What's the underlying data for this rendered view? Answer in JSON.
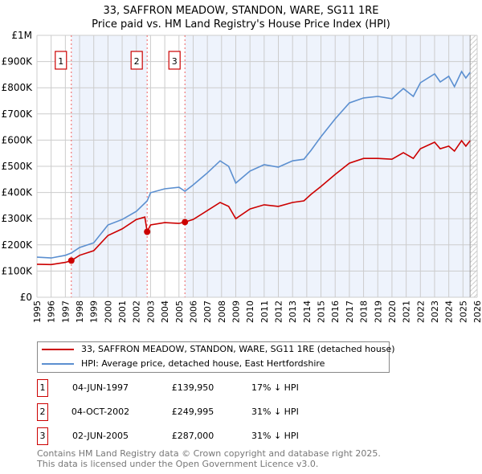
{
  "chart_data": {
    "type": "line",
    "title": "33, SAFFRON MEADOW, STANDON, WARE, SG11 1RE",
    "subtitle": "Price paid vs. HM Land Registry's House Price Index (HPI)",
    "xlabel": "",
    "ylabel": "",
    "xlim": [
      1995,
      2026
    ],
    "ylim": [
      0,
      1000000
    ],
    "y_ticks": [
      {
        "v": 0,
        "label": "£0"
      },
      {
        "v": 100000,
        "label": "£100K"
      },
      {
        "v": 200000,
        "label": "£200K"
      },
      {
        "v": 300000,
        "label": "£300K"
      },
      {
        "v": 400000,
        "label": "£400K"
      },
      {
        "v": 500000,
        "label": "£500K"
      },
      {
        "v": 600000,
        "label": "£600K"
      },
      {
        "v": 700000,
        "label": "£700K"
      },
      {
        "v": 800000,
        "label": "£800K"
      },
      {
        "v": 900000,
        "label": "£900K"
      },
      {
        "v": 1000000,
        "label": "£1M"
      }
    ],
    "x_ticks": [
      "1995",
      "1996",
      "1997",
      "1998",
      "1999",
      "2000",
      "2001",
      "2002",
      "2003",
      "2004",
      "2005",
      "2006",
      "2007",
      "2008",
      "2009",
      "2010",
      "2011",
      "2012",
      "2013",
      "2014",
      "2015",
      "2016",
      "2017",
      "2018",
      "2019",
      "2020",
      "2021",
      "2022",
      "2023",
      "2024",
      "2025",
      "2026"
    ],
    "grid": true,
    "data_end": 2025.5,
    "colors": {
      "property": "#cc0000",
      "hpi": "#5b8fd0",
      "shade": "#eef3fc"
    },
    "series": [
      {
        "name": "33, SAFFRON MEADOW, STANDON, WARE, SG11 1RE (detached house)",
        "x": [
          1995,
          1996,
          1997,
          1997.42,
          1998,
          1999,
          2000,
          2001,
          2002,
          2002.6,
          2002.76,
          2003,
          2004,
          2005,
          2005.42,
          2006,
          2007,
          2007.9,
          2008.5,
          2009,
          2010,
          2011,
          2012,
          2013,
          2013.8,
          2014.3,
          2015,
          2016,
          2017,
          2018,
          2019,
          2020,
          2020.8,
          2021.5,
          2022,
          2023,
          2023.4,
          2024,
          2024.4,
          2024.9,
          2025.2,
          2025.5
        ],
        "y": [
          126000,
          125000,
          133000,
          139950,
          160000,
          178000,
          236000,
          261000,
          297000,
          306000,
          249995,
          276000,
          285000,
          282000,
          287000,
          297000,
          331000,
          362000,
          347000,
          300000,
          337000,
          353000,
          347000,
          362000,
          368000,
          393000,
          423000,
          469000,
          512000,
          530000,
          530000,
          527000,
          552000,
          530000,
          567000,
          592000,
          567000,
          577000,
          558000,
          598000,
          577000,
          598000
        ]
      },
      {
        "name": "HPI: Average price, detached house, East Hertfordshire",
        "x": [
          1995,
          1996,
          1997,
          1997.42,
          1998,
          1999,
          2000,
          2001,
          2002,
          2002.76,
          2003,
          2004,
          2005,
          2005.42,
          2006,
          2007,
          2007.9,
          2008.5,
          2009,
          2010,
          2011,
          2012,
          2013,
          2013.8,
          2014.3,
          2015,
          2016,
          2017,
          2018,
          2019,
          2020,
          2020.8,
          2021.5,
          2022,
          2023,
          2023.4,
          2024,
          2024.4,
          2024.9,
          2025.2,
          2025.5
        ],
        "y": [
          153000,
          150000,
          160000,
          169000,
          190000,
          208000,
          276000,
          297000,
          328000,
          368000,
          399000,
          414000,
          420000,
          405000,
          429000,
          475000,
          521000,
          500000,
          436000,
          482000,
          506000,
          497000,
          521000,
          527000,
          561000,
          613000,
          681000,
          742000,
          761000,
          767000,
          758000,
          797000,
          767000,
          819000,
          853000,
          822000,
          844000,
          804000,
          862000,
          837000,
          859000
        ]
      }
    ],
    "sales": [
      {
        "label": "1",
        "x": 1997.42,
        "y": 139950
      },
      {
        "label": "2",
        "x": 2002.76,
        "y": 249995
      },
      {
        "label": "3",
        "x": 2005.42,
        "y": 287000
      }
    ]
  },
  "legend": {
    "property": "33, SAFFRON MEADOW, STANDON, WARE, SG11 1RE (detached house)",
    "hpi": "HPI: Average price, detached house, East Hertfordshire"
  },
  "transactions": [
    {
      "num": "1",
      "date": "04-JUN-1997",
      "price": "£139,950",
      "hpi": "17% ↓ HPI"
    },
    {
      "num": "2",
      "date": "04-OCT-2002",
      "price": "£249,995",
      "hpi": "31% ↓ HPI"
    },
    {
      "num": "3",
      "date": "02-JUN-2005",
      "price": "£287,000",
      "hpi": "31% ↓ HPI"
    }
  ],
  "footer": {
    "line1": "Contains HM Land Registry data © Crown copyright and database right 2025.",
    "line2": "This data is licensed under the Open Government Licence v3.0."
  }
}
